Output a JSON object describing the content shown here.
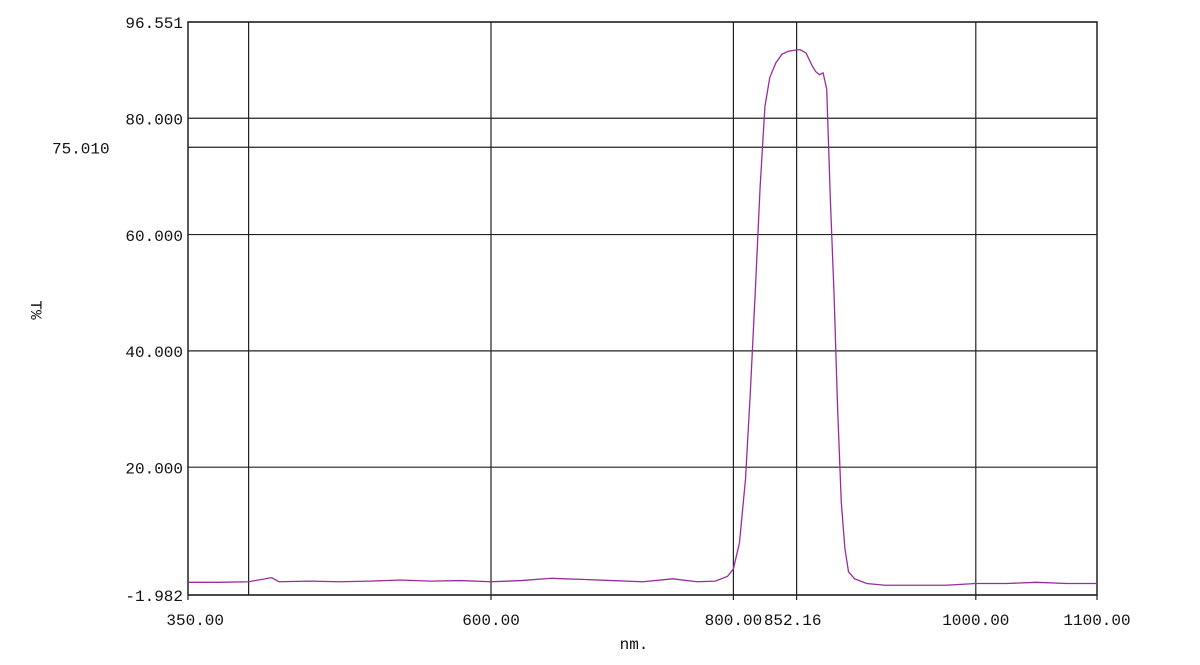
{
  "chart_data": {
    "type": "line",
    "y_label": "T%",
    "x_label": "nm.",
    "x": [
      350,
      375,
      400,
      419,
      425,
      450,
      475,
      500,
      525,
      550,
      575,
      600,
      625,
      650,
      660,
      675,
      700,
      725,
      750,
      770,
      785,
      795,
      800,
      805,
      810,
      814,
      818,
      822,
      826,
      830,
      835,
      840,
      845,
      850,
      855,
      860,
      865,
      868,
      871,
      874,
      877,
      880,
      883,
      886,
      889,
      892,
      895,
      900,
      910,
      925,
      950,
      975,
      1000,
      1025,
      1050,
      1075,
      1100
    ],
    "series": [
      {
        "color": "#9a2c9a",
        "values": [
          0.2,
          0.2,
          0.3,
          1.0,
          0.3,
          0.4,
          0.3,
          0.4,
          0.6,
          0.4,
          0.5,
          0.3,
          0.5,
          0.9,
          0.8,
          0.7,
          0.5,
          0.3,
          0.8,
          0.3,
          0.4,
          1.2,
          2.5,
          7,
          18,
          33,
          50,
          68,
          82,
          87,
          89.5,
          91,
          91.5,
          91.7,
          91.8,
          91.2,
          89,
          88,
          87.5,
          87.8,
          85,
          66,
          50,
          30,
          14,
          6,
          2,
          0.8,
          0,
          -0.3,
          -0.3,
          -0.3,
          0,
          0,
          0.2,
          0,
          0
        ]
      }
    ],
    "xlim": [
      350,
      1100
    ],
    "xticks": [
      {
        "value": 350,
        "label": "350.00"
      },
      {
        "value": 600,
        "label": "600.00"
      },
      {
        "value": 800,
        "label": "800.00"
      },
      852.16,
      {
        "value": 1000,
        "label": "1000.00"
      },
      {
        "value": 1100,
        "label": "1100.00"
      }
    ],
    "xgrid": [
      400,
      600,
      800,
      852.16,
      1000
    ],
    "ylim": [
      -1.982,
      96.551
    ],
    "yticks": [
      96.551,
      {
        "value": 80,
        "label": "80.000"
      },
      {
        "value": 75.01,
        "label": "75.010"
      },
      {
        "value": 60,
        "label": "60.000"
      },
      {
        "value": 40,
        "label": "40.000"
      },
      {
        "value": 20,
        "label": "20.000"
      },
      -1.982
    ],
    "grid": true
  }
}
